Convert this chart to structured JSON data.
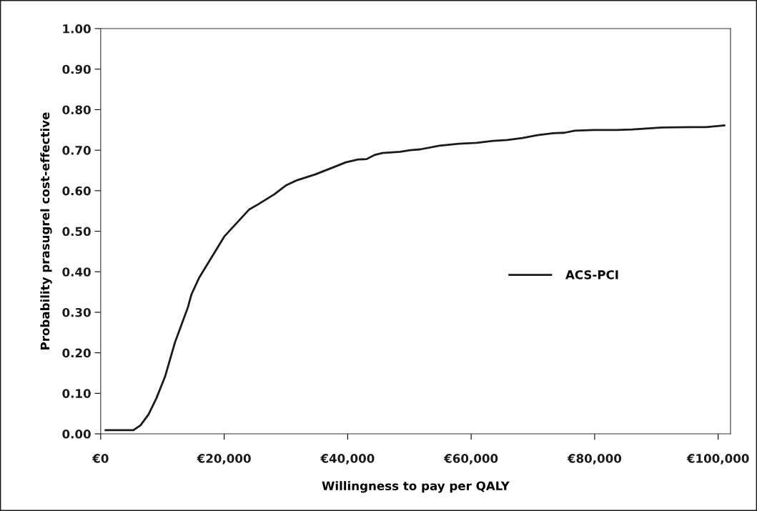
{
  "chart_data": {
    "type": "line",
    "xlabel": "Willingness to pay per QALY",
    "ylabel": "Probability prasugrel cost-effective",
    "series": [
      {
        "name": "ACS-PCI",
        "color": "#1a1a1a",
        "x": [
          800,
          2000,
          5300,
          6450,
          7750,
          9030,
          10420,
          12040,
          14120,
          14700,
          15970,
          20020,
          24070,
          25460,
          28120,
          30090,
          31830,
          34720,
          37380,
          39700,
          41670,
          43060,
          44330,
          45600,
          48500,
          50120,
          51740,
          54860,
          57990,
          60880,
          63540,
          65860,
          68290,
          70720,
          73260,
          75120,
          76740,
          79860,
          83560,
          86110,
          90970,
          95600,
          98030,
          101000
        ],
        "values": [
          0.009,
          0.009,
          0.009,
          0.021,
          0.048,
          0.088,
          0.141,
          0.226,
          0.312,
          0.344,
          0.386,
          0.487,
          0.554,
          0.566,
          0.591,
          0.614,
          0.626,
          0.64,
          0.656,
          0.67,
          0.677,
          0.678,
          0.688,
          0.693,
          0.696,
          0.7,
          0.702,
          0.711,
          0.716,
          0.718,
          0.723,
          0.725,
          0.73,
          0.737,
          0.742,
          0.743,
          0.748,
          0.75,
          0.75,
          0.751,
          0.756,
          0.757,
          0.757,
          0.761
        ]
      }
    ],
    "xlim": [
      0,
      102000
    ],
    "ylim": [
      0,
      1
    ],
    "xticks": [
      {
        "value": 0,
        "label": "€0"
      },
      {
        "value": 20000,
        "label": "€20,000"
      },
      {
        "value": 40000,
        "label": "€40,000"
      },
      {
        "value": 60000,
        "label": "€60,000"
      },
      {
        "value": 80000,
        "label": "€80,000"
      },
      {
        "value": 100000,
        "label": "€100,000"
      }
    ],
    "yticks": [
      {
        "value": 0,
        "label": "0.00"
      },
      {
        "value": 0.1,
        "label": "0.10"
      },
      {
        "value": 0.2,
        "label": "0.20"
      },
      {
        "value": 0.3,
        "label": "0.30"
      },
      {
        "value": 0.4,
        "label": "0.40"
      },
      {
        "value": 0.5,
        "label": "0.50"
      },
      {
        "value": 0.6,
        "label": "0.60"
      },
      {
        "value": 0.7,
        "label": "0.70"
      },
      {
        "value": 0.8,
        "label": "0.80"
      },
      {
        "value": 0.9,
        "label": "0.90"
      },
      {
        "value": 1,
        "label": "1.00"
      }
    ],
    "legend": "right",
    "grid": false,
    "marker": "none",
    "line_style": "solid"
  }
}
